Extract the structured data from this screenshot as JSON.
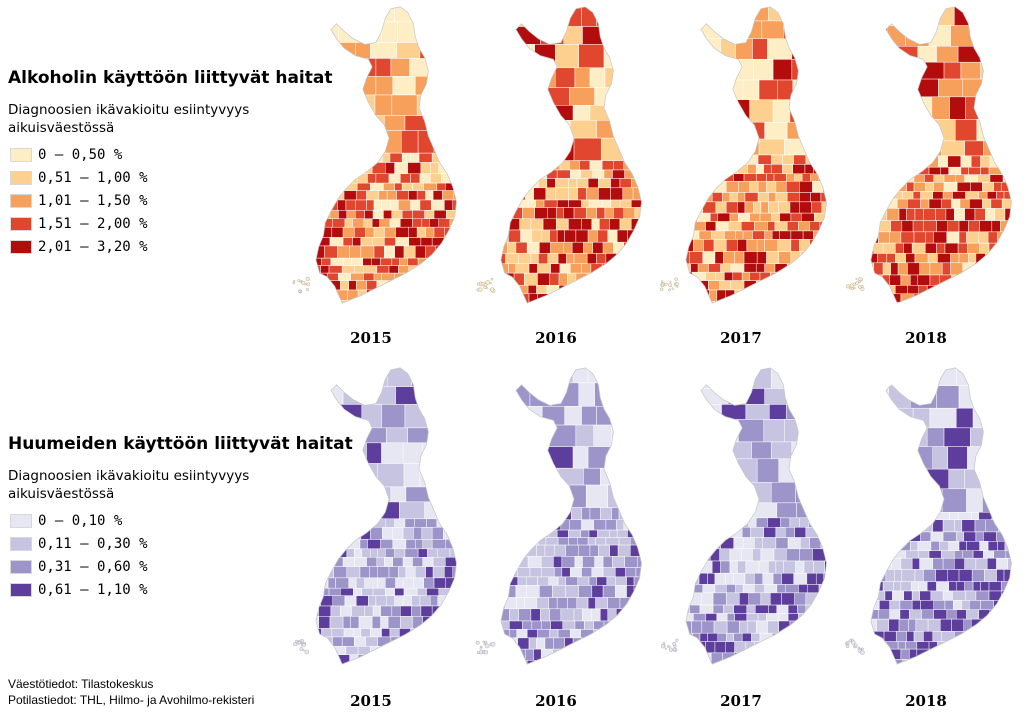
{
  "alcohol": {
    "title": "Alkoholin käyttöön liittyvät haitat",
    "subtitle": "Diagnoosien ikävakioitu esiintyvyys aikuisväestössä",
    "legend": [
      {
        "label": "0 – 0,50 %",
        "color": "#fdeec6"
      },
      {
        "label": "0,51 – 1,00 %",
        "color": "#fdd08f"
      },
      {
        "label": "1,01 – 1,50 %",
        "color": "#f6a05c"
      },
      {
        "label": "1,51 – 2,00 %",
        "color": "#e0472e"
      },
      {
        "label": "2,01 – 3,20 %",
        "color": "#b30c0c"
      }
    ],
    "years": [
      "2015",
      "2016",
      "2017",
      "2018"
    ]
  },
  "drugs": {
    "title": "Huumeiden käyttöön liittyvät haitat",
    "subtitle": "Diagnoosien ikävakioitu esiintyvyys aikuisväestössä",
    "legend": [
      {
        "label": "0 – 0,10 %",
        "color": "#e6e7f2"
      },
      {
        "label": "0,11 – 0,30 %",
        "color": "#c6c4e0"
      },
      {
        "label": "0,31 – 0,60 %",
        "color": "#9d95c9"
      },
      {
        "label": "0,61 – 1,10 %",
        "color": "#5e3e9c"
      }
    ],
    "years": [
      "2015",
      "2016",
      "2017",
      "2018"
    ]
  },
  "sources": {
    "line1": "Väestötiedot: Tilastokeskus",
    "line2": "Potilastiedot: THL, Hilmo- ja Avohilmo-rekisteri"
  }
}
